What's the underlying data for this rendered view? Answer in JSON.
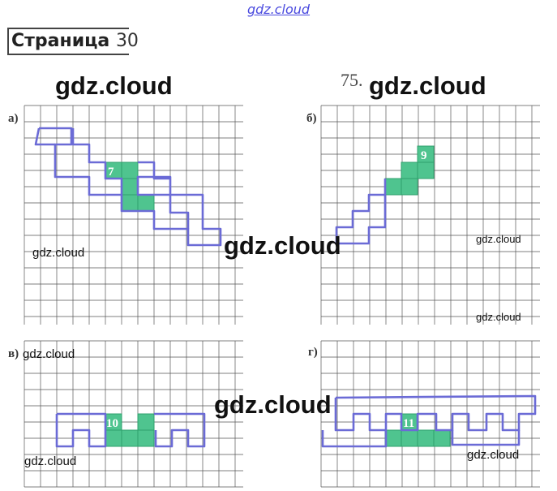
{
  "watermark_top": "gdz.cloud",
  "page": {
    "label": "Страница",
    "number": "30"
  },
  "task_number": "75.",
  "watermarks": {
    "big_1": "gdz.cloud",
    "big_2": "gdz.cloud",
    "big_3": "gdz.cloud",
    "big_4": "gdz.cloud",
    "small_1": "gdz.cloud",
    "small_2": "gdz.cloud",
    "small_3": "gdz.cloud",
    "small_4": "gdz.cloud",
    "small_5": "gdz.cloud",
    "small_6": "gdz.cloud"
  },
  "panels": {
    "a": {
      "label": "а)",
      "number": "7"
    },
    "b": {
      "label": "б)",
      "number": "9"
    },
    "v": {
      "label": "в)",
      "number": "10"
    },
    "g": {
      "label": "г)",
      "number": "11"
    }
  },
  "colors": {
    "grid": "#555555",
    "outline": "#6b6bd6",
    "fill": "#4fc48f",
    "fill_dark": "#2fa06c",
    "number": "#ffffff"
  }
}
